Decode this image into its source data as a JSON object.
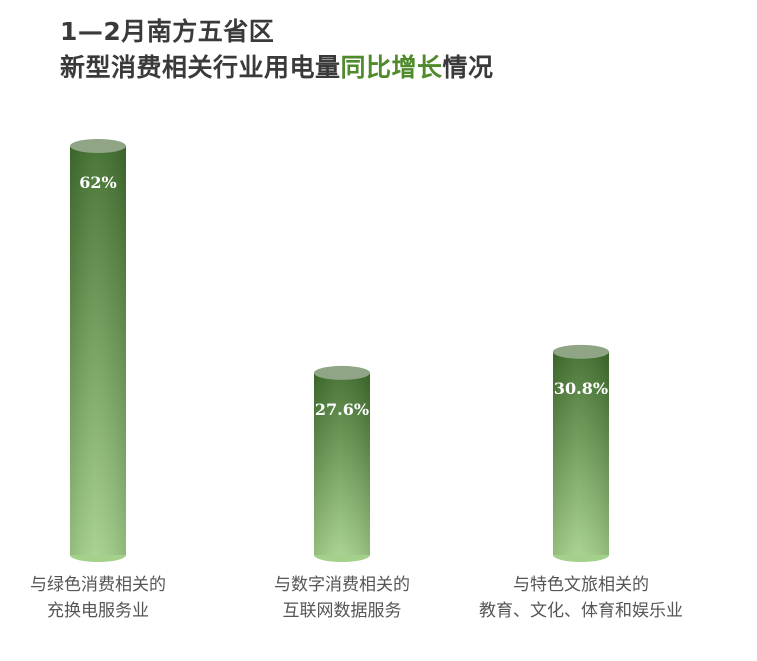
{
  "title": {
    "line1": "1—2月南方五省区",
    "line2_prefix": "新型消费相关行业用电量",
    "line2_highlight": "同比增长",
    "line2_suffix": "情况"
  },
  "colors": {
    "title": "#3a3a3a",
    "highlight": "#4f8a2b",
    "bar_top": "#3f6e2c",
    "bar_bottom": "#a3d08a",
    "label_text": "#555555",
    "value_text": "#ffffff"
  },
  "chart_data": {
    "type": "bar",
    "categories": [
      [
        "与绿色消费相关的",
        "充换电服务业"
      ],
      [
        "与数字消费相关的",
        "互联网数据服务"
      ],
      [
        "与特色文旅相关的",
        "教育、文化、体育和娱乐业"
      ]
    ],
    "values": [
      62,
      27.6,
      30.8
    ],
    "value_labels": [
      "62%",
      "27.6%",
      "30.8%"
    ],
    "unit": "%",
    "ylim": [
      0,
      62
    ],
    "grid": false,
    "legend": "none"
  }
}
